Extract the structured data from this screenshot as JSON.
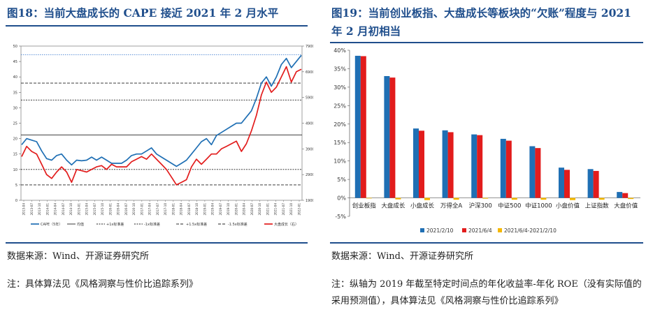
{
  "left": {
    "title": "图18：当前大盘成长的 CAPE 接近 2021 年 2 月水平",
    "source": "数据来源：Wind、开源证券研究所",
    "note": "注：具体算法见《风格洞察与性价比追踪系列》",
    "chart_data": {
      "type": "line",
      "ylim": [
        0,
        50
      ],
      "yticks": [
        0,
        5,
        10,
        15,
        20,
        25,
        30,
        35,
        40,
        45,
        50
      ],
      "y2lim": [
        1900,
        7900
      ],
      "y2ticks": [
        1900,
        2900,
        3900,
        4900,
        5900,
        6900,
        7900
      ],
      "xticks": [
        "2013-04",
        "2013-07",
        "2013-10",
        "2014-01",
        "2014-04",
        "2014-07",
        "2014-10",
        "2015-01",
        "2015-04",
        "2015-07",
        "2015-10",
        "2016-01",
        "2016-04",
        "2016-07",
        "2016-10",
        "2017-01",
        "2017-04",
        "2017-07",
        "2017-10",
        "2018-01",
        "2018-04",
        "2018-07",
        "2018-10",
        "2019-01",
        "2019-04",
        "2019-07",
        "2019-10",
        "2020-01",
        "2020-04",
        "2020-07",
        "2020-10",
        "2021-01",
        "2021-04",
        "2021-07",
        "2021-10",
        "2022-01"
      ],
      "legend_position": "bottom",
      "series": [
        {
          "name": "CAPE（5年）",
          "color": "#1f6fb4",
          "axis": "left",
          "values": [
            18,
            20,
            19.5,
            19,
            16,
            13.5,
            13,
            14.5,
            15,
            13,
            11.5,
            13,
            12.8,
            13,
            14,
            13,
            14,
            13,
            12,
            12,
            12,
            13,
            14.5,
            15,
            15,
            16,
            17,
            15,
            14,
            13,
            12,
            11,
            12,
            13,
            15,
            17,
            19,
            20,
            18,
            21,
            22,
            23,
            24,
            25,
            25,
            27,
            29,
            33,
            38,
            40,
            37,
            40,
            44,
            46,
            43,
            45,
            47
          ]
        },
        {
          "name": "大盘成长（右）",
          "color": "#e21c1c",
          "axis": "right",
          "values": [
            3600,
            4000,
            3800,
            3700,
            3300,
            2900,
            2750,
            3000,
            3200,
            3000,
            2600,
            3100,
            3050,
            3000,
            3100,
            3200,
            3250,
            3100,
            3300,
            3200,
            3200,
            3200,
            3400,
            3500,
            3600,
            3500,
            3700,
            3500,
            3300,
            3100,
            2800,
            2500,
            2600,
            2700,
            3200,
            3500,
            3300,
            3500,
            3700,
            3700,
            3900,
            4000,
            4100,
            4200,
            3800,
            4100,
            4600,
            5200,
            6000,
            6500,
            6100,
            6300,
            6700,
            7100,
            6500,
            6900,
            7000
          ]
        }
      ],
      "reference_lines": [
        {
          "name": "均值",
          "value": 21.2,
          "style": "solid"
        },
        {
          "name": "+1x标准差",
          "value": 32.5,
          "style": "dotted"
        },
        {
          "name": "-1x标准差",
          "value": 10,
          "style": "dotted"
        },
        {
          "name": "+1.5x标准差",
          "value": 38,
          "style": "dashed"
        },
        {
          "name": "-1.5x标准差",
          "value": 5,
          "style": "dashed"
        },
        {
          "name": "",
          "value": 47.2,
          "style": "dotted-blue"
        }
      ]
    }
  },
  "right": {
    "title": "图19：当前创业板指、大盘成长等板块的“欠账”程度与 2021 年 2 月初相当",
    "source": "数据来源：Wind、开源证券研究所",
    "note": "注：纵轴为 2019 年截至特定时间点的年化收益率-年化 ROE（没有实际值的采用预测值），具体算法见《风格洞察与性价比追踪系列》",
    "chart_data": {
      "type": "bar",
      "ylim": [
        -0.05,
        0.4
      ],
      "yticks": [
        "-5%",
        "0%",
        "5%",
        "10%",
        "15%",
        "20%",
        "25%",
        "30%",
        "35%",
        "40%"
      ],
      "categories": [
        "创业板指",
        "大盘成长",
        "小盘成长",
        "万得全A",
        "沪深300",
        "中证500",
        "中证1000",
        "小盘价值",
        "上证指数",
        "大盘价值"
      ],
      "legend_position": "bottom",
      "series": [
        {
          "name": "2021/2/10",
          "color": "#1f6fb4",
          "values": [
            0.385,
            0.33,
            0.188,
            0.183,
            0.172,
            0.16,
            0.14,
            0.082,
            0.078,
            0.016
          ]
        },
        {
          "name": "2021/6/4",
          "color": "#e21c1c",
          "values": [
            0.384,
            0.326,
            0.182,
            0.178,
            0.17,
            0.155,
            0.135,
            0.076,
            0.073,
            0.013
          ]
        },
        {
          "name": "2021/6/4-2021/2/10",
          "color": "#f5b800",
          "values": [
            -0.001,
            -0.004,
            -0.006,
            -0.005,
            -0.002,
            -0.005,
            -0.005,
            -0.006,
            -0.005,
            -0.003
          ]
        }
      ]
    }
  }
}
